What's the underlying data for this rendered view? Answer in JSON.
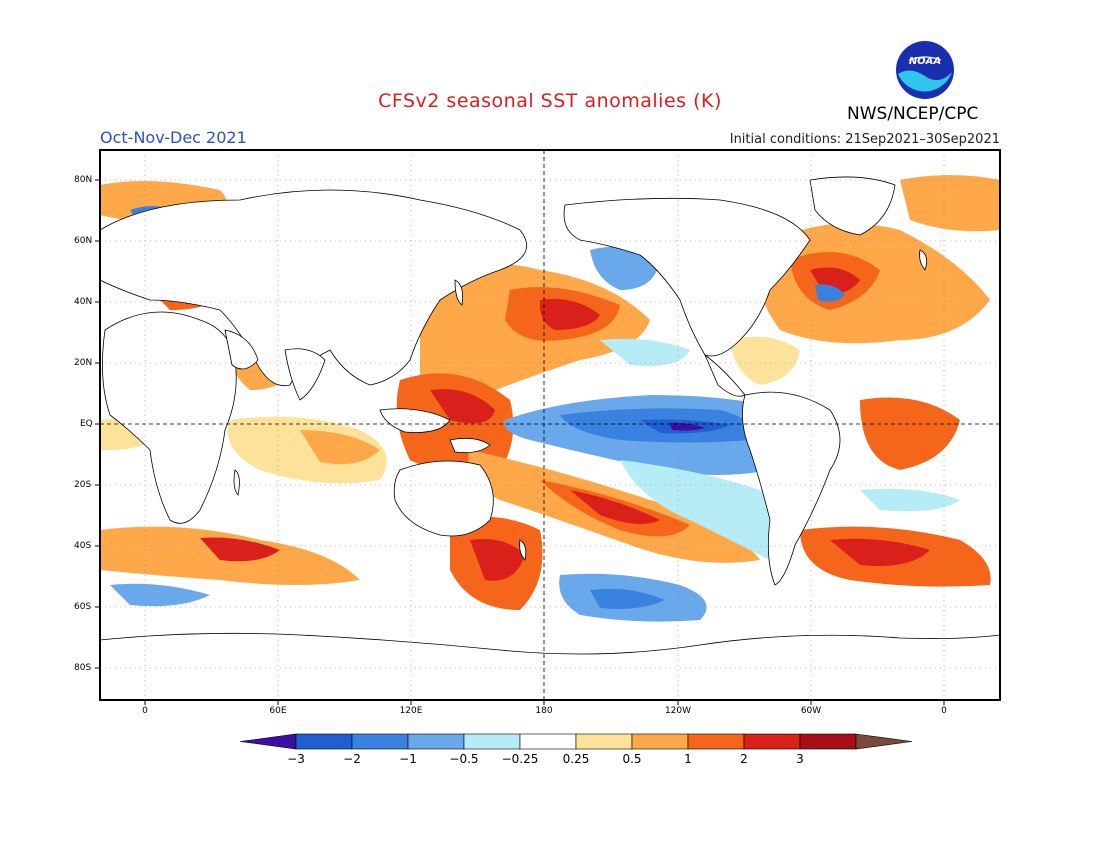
{
  "header": {
    "title": "CFSv2 seasonal SST anomalies (K)",
    "season": "Oct-Nov-Dec 2021",
    "initial_conditions": "Initial conditions: 21Sep2021–30Sep2021",
    "agency": "NWS/NCEP/CPC",
    "logo_text": "NOAA"
  },
  "colors": {
    "title": "#e01b1b",
    "season": "#2a4fd6",
    "land": "#ffffff",
    "scale": [
      "#3b0fa0",
      "#1f5fd0",
      "#3a82e0",
      "#6aa8ec",
      "#b6ecf6",
      "#ffffff",
      "#fde39a",
      "#ffa84a",
      "#f5651a",
      "#d9201a",
      "#a50f15",
      "#7a4a3a"
    ]
  },
  "lat_labels": [
    "80N",
    "60N",
    "40N",
    "20N",
    "EQ",
    "20S",
    "40S",
    "60S",
    "80S"
  ],
  "lon_labels": [
    "0",
    "60E",
    "120E",
    "180",
    "120W",
    "60W",
    "0"
  ],
  "colorbar": {
    "ticks": [
      "−3",
      "−2",
      "−1",
      "−0.5",
      "−0.25",
      "0.25",
      "0.5",
      "1",
      "2",
      "3"
    ]
  },
  "icons": [
    "noaa-logo-icon"
  ]
}
